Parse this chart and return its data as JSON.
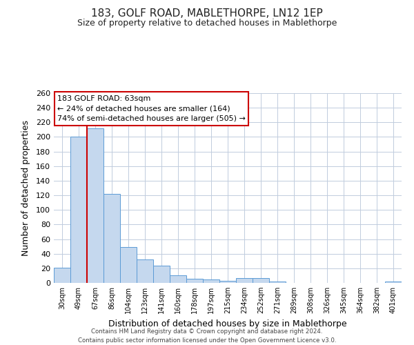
{
  "title": "183, GOLF ROAD, MABLETHORPE, LN12 1EP",
  "subtitle": "Size of property relative to detached houses in Mablethorpe",
  "xlabel": "Distribution of detached houses by size in Mablethorpe",
  "ylabel": "Number of detached properties",
  "bar_labels": [
    "30sqm",
    "49sqm",
    "67sqm",
    "86sqm",
    "104sqm",
    "123sqm",
    "141sqm",
    "160sqm",
    "178sqm",
    "197sqm",
    "215sqm",
    "234sqm",
    "252sqm",
    "271sqm",
    "289sqm",
    "308sqm",
    "326sqm",
    "345sqm",
    "364sqm",
    "382sqm",
    "401sqm"
  ],
  "bar_values": [
    21,
    200,
    212,
    122,
    49,
    32,
    24,
    10,
    6,
    5,
    3,
    7,
    7,
    2,
    0,
    0,
    0,
    0,
    0,
    0,
    2
  ],
  "bar_color": "#c5d8ee",
  "bar_edge_color": "#5b9bd5",
  "vline_color": "#cc0000",
  "ylim": [
    0,
    260
  ],
  "yticks": [
    0,
    20,
    40,
    60,
    80,
    100,
    120,
    140,
    160,
    180,
    200,
    220,
    240,
    260
  ],
  "annotation_title": "183 GOLF ROAD: 63sqm",
  "annotation_line1": "← 24% of detached houses are smaller (164)",
  "annotation_line2": "74% of semi-detached houses are larger (505) →",
  "annotation_box_color": "#ffffff",
  "annotation_box_edge_color": "#cc0000",
  "footer_line1": "Contains HM Land Registry data © Crown copyright and database right 2024.",
  "footer_line2": "Contains public sector information licensed under the Open Government Licence v3.0.",
  "background_color": "#ffffff",
  "grid_color": "#c0ccdd",
  "title_fontsize": 11,
  "subtitle_fontsize": 9
}
